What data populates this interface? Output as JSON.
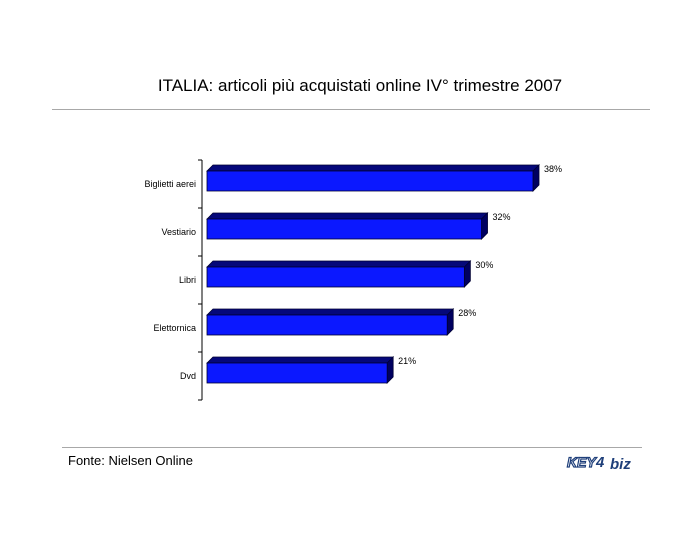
{
  "header": {
    "title": "ITALIA: articoli più acquistati online IV° trimestre 2007"
  },
  "footer": {
    "source": "Fonte: Nielsen Online",
    "logo_text_left": "KEY",
    "logo_text_num": "4",
    "logo_text_right": "biz"
  },
  "colors": {
    "bar_front": "#0b18ff",
    "bar_top": "#05087a",
    "bar_side": "#000060",
    "bar_edge": "#000033",
    "rule": "#a8a8a8",
    "logo_blue": "#1f3f7a"
  },
  "chart_data": {
    "type": "bar",
    "orientation": "horizontal",
    "title": "ITALIA: articoli più acquistati online IV° trimestre 2007",
    "categories": [
      "Biglietti aerei",
      "Vestiario",
      "Libri",
      "Elettornica",
      "Dvd"
    ],
    "values": [
      38,
      32,
      30,
      28,
      21
    ],
    "data_labels": [
      "38%",
      "32%",
      "30%",
      "28%",
      "21%"
    ],
    "xlim": [
      0,
      38
    ],
    "grid": false,
    "legend": "none"
  }
}
